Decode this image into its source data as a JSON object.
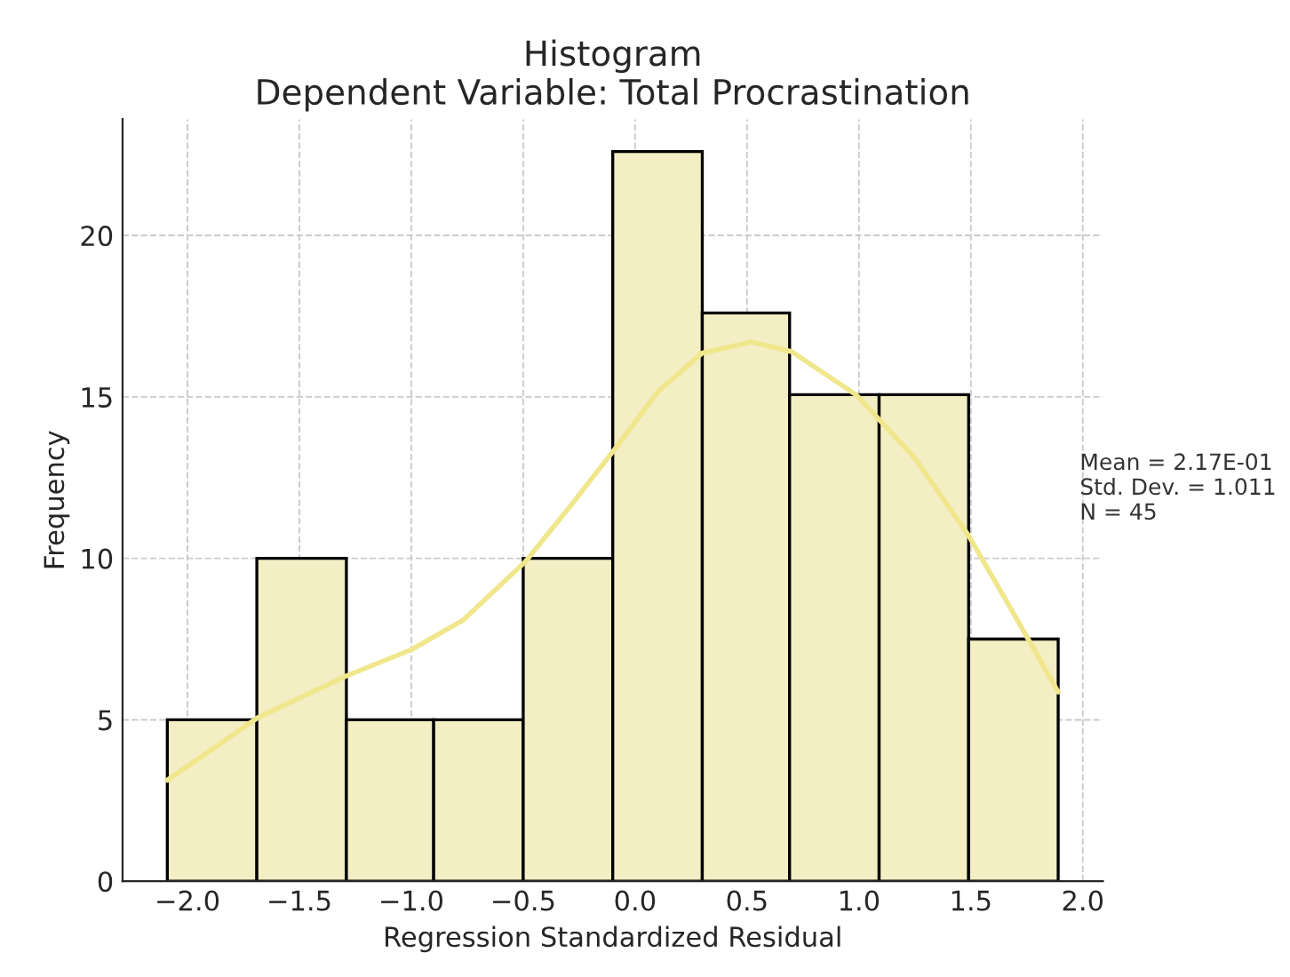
{
  "chart_data": {
    "type": "histogram",
    "title": "Histogram\nDependent Variable: Total Procrastination",
    "xlabel": "Regression Standardized Residual",
    "ylabel": "Frequency",
    "bins": [
      -2.09,
      -1.69,
      -1.29,
      -0.9,
      -0.5,
      -0.1,
      0.3,
      0.69,
      1.09,
      1.49,
      1.89
    ],
    "values": [
      5,
      10,
      5,
      5,
      10,
      22.6,
      17.6,
      15.07,
      15.07,
      7.5
    ],
    "color": "#f3eec4",
    "series": [
      {
        "type": "line",
        "color": "#f0e68c",
        "x": [
          -2.09,
          -1.69,
          -1.29,
          -1.0,
          -0.77,
          -0.49,
          -0.28,
          -0.1,
          0.1,
          0.3,
          0.52,
          0.7,
          0.99,
          1.25,
          1.49,
          1.69,
          1.89
        ],
        "values": [
          3.13,
          5.05,
          6.36,
          7.17,
          8.08,
          9.9,
          11.7,
          13.3,
          15.15,
          16.36,
          16.7,
          16.4,
          15.05,
          13.1,
          10.7,
          8.3,
          5.86
        ]
      }
    ],
    "xlim": [
      -2.29,
      2.09
    ],
    "ylim": [
      0,
      23.6
    ],
    "xticks": [
      {
        "value": -2.0,
        "label": "−2.0"
      },
      {
        "value": -1.5,
        "label": "−1.5"
      },
      {
        "value": -1.0,
        "label": "−1.0"
      },
      {
        "value": -0.5,
        "label": "−0.5"
      },
      {
        "value": 0.0,
        "label": "0.0"
      },
      {
        "value": 0.5,
        "label": "0.5"
      },
      {
        "value": 1.0,
        "label": "1.0"
      },
      {
        "value": 1.5,
        "label": "1.5"
      },
      {
        "value": 2.0,
        "label": "2.0"
      }
    ],
    "yticks": [
      0,
      5,
      10,
      15,
      20
    ],
    "grid": true,
    "annotations": [
      "Mean = 2.17E-01\nStd. Dev. = 1.011\nN = 45"
    ]
  }
}
